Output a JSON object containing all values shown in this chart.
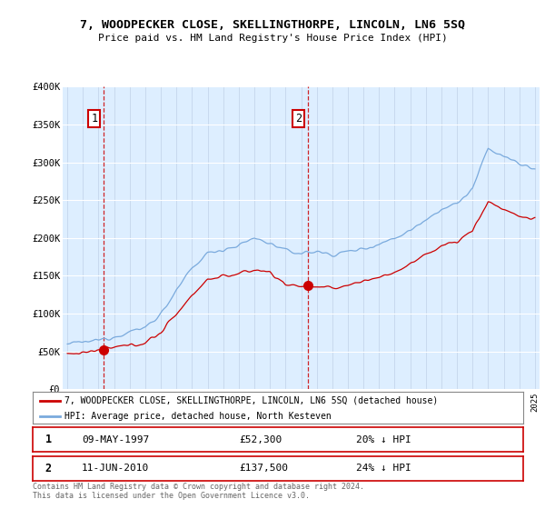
{
  "title": "7, WOODPECKER CLOSE, SKELLINGTHORPE, LINCOLN, LN6 5SQ",
  "subtitle": "Price paid vs. HM Land Registry's House Price Index (HPI)",
  "legend_line1": "7, WOODPECKER CLOSE, SKELLINGTHORPE, LINCOLN, LN6 5SQ (detached house)",
  "legend_line2": "HPI: Average price, detached house, North Kesteven",
  "sale1_date": "09-MAY-1997",
  "sale1_price": 52300,
  "sale1_label": "20% ↓ HPI",
  "sale2_date": "11-JUN-2010",
  "sale2_price": 137500,
  "sale2_label": "24% ↓ HPI",
  "footer": "Contains HM Land Registry data © Crown copyright and database right 2024.\nThis data is licensed under the Open Government Licence v3.0.",
  "red_color": "#cc0000",
  "blue_color": "#7aaadd",
  "bg_color": "#ddeeff",
  "grid_color": "#c0d0e8",
  "ylim": [
    0,
    400000
  ],
  "xlim_start": 1994.7,
  "xlim_end": 2025.3
}
